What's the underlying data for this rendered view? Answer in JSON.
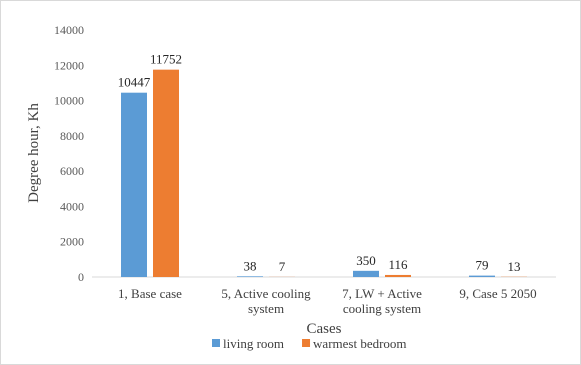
{
  "chart_data": {
    "type": "bar",
    "title": "",
    "xlabel": "Cases",
    "ylabel": "Degree hour, Kh",
    "ylim": [
      0,
      14000
    ],
    "yticks": [
      0,
      2000,
      4000,
      6000,
      8000,
      10000,
      12000,
      14000
    ],
    "grid": false,
    "legend_position": "bottom",
    "categories": [
      [
        "1, Base case"
      ],
      [
        "5, Active cooling",
        "system"
      ],
      [
        "7, LW + Active",
        "cooling system"
      ],
      [
        "9, Case 5 2050"
      ]
    ],
    "series": [
      {
        "name": "living room",
        "color": "#5b9bd5",
        "values": [
          10447,
          38,
          350,
          79
        ]
      },
      {
        "name": "warmest bedroom",
        "color": "#ed7d31",
        "values": [
          11752,
          7,
          116,
          13
        ]
      }
    ]
  }
}
